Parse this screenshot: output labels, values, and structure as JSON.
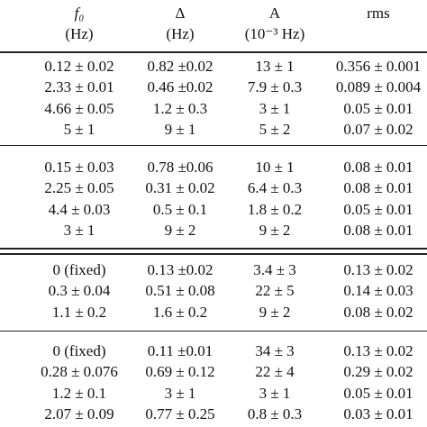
{
  "table": {
    "header": [
      "f₀",
      "Δ",
      "A",
      "rms"
    ],
    "units": [
      "(Hz)",
      "(Hz)",
      "(10⁻³ Hz)"
    ],
    "groups": [
      [
        [
          "0.12 ± 0.02",
          "0.82 ±0.02",
          "13 ± 1",
          "0.356 ± 0.001"
        ],
        [
          "2.33 ± 0.01",
          "0.46 ±0.02",
          "7.9 ± 0.3",
          "0.089 ± 0.004"
        ],
        [
          "4.66 ± 0.05",
          "1.2 ± 0.3",
          "3 ± 1",
          "0.05 ± 0.01"
        ],
        [
          "5 ± 1",
          "9 ± 1",
          "5 ± 2",
          "0.07 ± 0.02"
        ]
      ],
      [
        [
          "0.15 ± 0.03",
          "0.78 ±0.06",
          "10 ± 1",
          "0.08 ± 0.01"
        ],
        [
          "2.25 ± 0.05",
          "0.31 ± 0.02",
          "6.4 ± 0.3",
          "0.08 ± 0.01"
        ],
        [
          "4.4 ± 0.03",
          "0.5 ± 0.1",
          "1.8 ± 0.2",
          "0.05 ± 0.01"
        ],
        [
          "3 ± 1",
          "9 ± 2",
          "9 ± 2",
          "0.08 ± 0.01"
        ]
      ],
      [
        [
          "0 (fixed)",
          "0.13 ±0.02",
          "3.4 ± 3",
          "0.13 ± 0.02"
        ],
        [
          "0.3 ± 0.04",
          "0.51 ± 0.08",
          "22 ± 5",
          "0.14 ± 0.03"
        ],
        [
          "1.1 ± 0.2",
          "1.6 ± 0.2",
          "9 ± 2",
          "0.08 ± 0.02"
        ]
      ],
      [
        [
          "0 (fixed)",
          "0.11 ±0.01",
          "34 ± 3",
          "0.13 ± 0.02"
        ],
        [
          "0.28 ± 0.076",
          "0.69 ± 0.12",
          "22 ± 4",
          "0.29 ± 0.02"
        ],
        [
          "1.2 ± 0.1",
          "3 ± 1",
          "3 ± 1",
          "0.05 ± 0.01"
        ],
        [
          "2.07 ± 0.09",
          "0.77 ± 0.25",
          "0.8 ± 0.3",
          "0.03 ± 0.01"
        ]
      ]
    ]
  }
}
